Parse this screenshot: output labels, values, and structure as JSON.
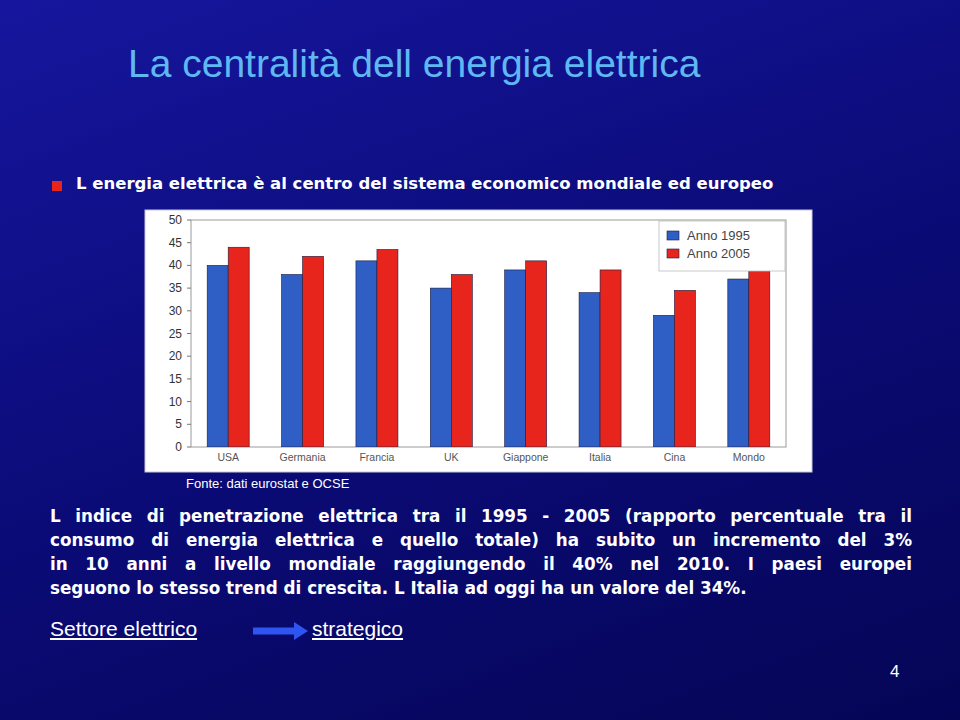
{
  "slide": {
    "title": "La centralità dell energia elettrica",
    "bullet": "L energia elettrica è al centro del sistema economico mondiale ed europeo",
    "source": "Fonte: dati eurostat e OCSE",
    "text": [
      "L indice di penetrazione elettrica tra il 1995 - 2005 (rapporto percentuale tra il",
      "consumo di energia elettrica e quello totale) ha subito un incremento  del 3%",
      "in 10 anni a livello mondiale raggiungendo il 40% nel 2010. I paesi europei",
      "seguono lo stesso trend di crescita. L Italia ad oggi ha un valore del 34%."
    ],
    "conclusion": [
      "Settore elettrico",
      "strategico"
    ],
    "page_number": 4
  },
  "chart_data": {
    "type": "bar",
    "categories": [
      "USA",
      "Germania",
      "Francia",
      "UK",
      "Giappone",
      "Italia",
      "Cina",
      "Mondo"
    ],
    "series": [
      {
        "name": "Anno 1995",
        "color": "#2f5fc4",
        "values": [
          40,
          38,
          41,
          35,
          39,
          34,
          29,
          37
        ]
      },
      {
        "name": "Anno 2005",
        "color": "#e8251c",
        "values": [
          44,
          42,
          43.5,
          38,
          41,
          39,
          34.5,
          39
        ]
      }
    ],
    "ylim": [
      0,
      50
    ],
    "yticks": [
      0,
      5,
      10,
      15,
      20,
      25,
      30,
      35,
      40,
      45,
      50
    ],
    "grid": false,
    "legend": "upper-right"
  }
}
